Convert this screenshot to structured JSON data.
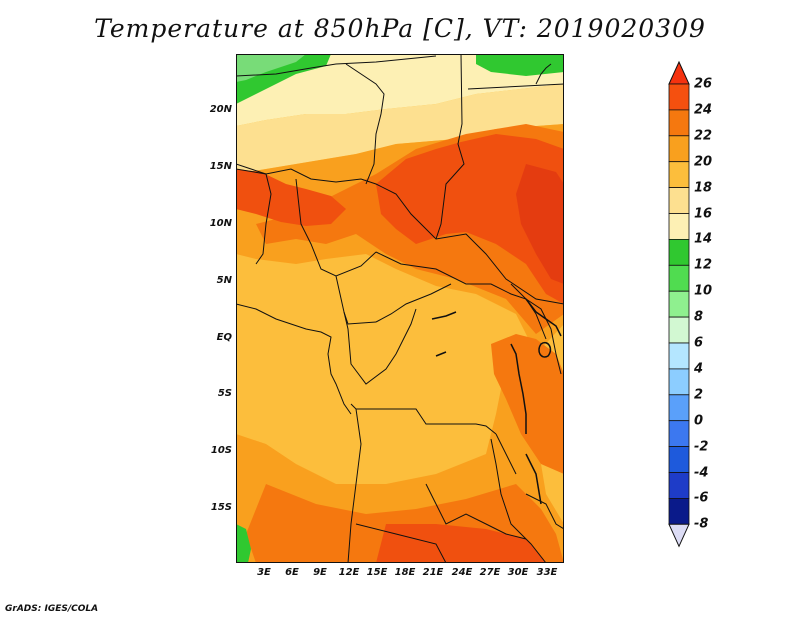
{
  "title": "Temperature at 850hPa [C], VT: 2019020309",
  "footer": "GrADS: IGES/COLA",
  "lat_ticks": [
    "20N",
    "15N",
    "10N",
    "5N",
    "EQ",
    "5S",
    "10S",
    "15S"
  ],
  "lon_ticks": [
    "3E",
    "6E",
    "9E",
    "12E",
    "15E",
    "18E",
    "21E",
    "24E",
    "27E",
    "30E",
    "33E"
  ],
  "colorbar": {
    "labels": [
      "26",
      "24",
      "22",
      "20",
      "18",
      "16",
      "14",
      "12",
      "10",
      "8",
      "6",
      "4",
      "2",
      "0",
      "-2",
      "-4",
      "-6",
      "-8"
    ],
    "colors": [
      "#f5320f",
      "#f5500f",
      "#f5780f",
      "#f9a01e",
      "#fcbe3c",
      "#fde090",
      "#fdf0b4",
      "#30c830",
      "#50dc50",
      "#8ff08f",
      "#d2f8d2",
      "#b4e6ff",
      "#8ccdff",
      "#5aa0fa",
      "#3c78f0",
      "#1e5adc",
      "#1e3cc8",
      "#0a1a8a",
      "#dcdcf5"
    ]
  },
  "map": {
    "colors": {
      "c26": "#e43c10",
      "c24": "#f0500f",
      "c22": "#f5780f",
      "c20": "#f9a01e",
      "c18": "#fcbe3c",
      "c16": "#fde090",
      "c14": "#fdf0b4",
      "c12": "#30c830",
      "c10": "#78dc78"
    }
  }
}
